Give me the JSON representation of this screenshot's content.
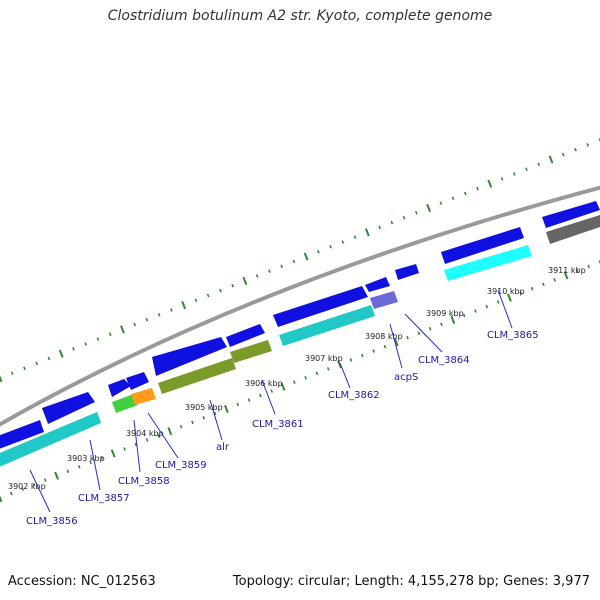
{
  "title": "Clostridium botulinum A2 str. Kyoto, complete genome",
  "footer": {
    "accession": "Accession: NC_012563",
    "summary": "Topology: circular; Length: 4,155,278 bp; Genes: 3,977"
  },
  "colors": {
    "backbone": "#9a9a9a",
    "tick": "#2e8b2e",
    "gene_label": "#1a1aaa",
    "cds_forward": "#1010e0",
    "rna_track": "#20c8c8",
    "alr": "#7a9a2a",
    "CLM_3858": "#40d040",
    "CLM_3859": "#ff9a1a",
    "acpS": "#6a6ad8",
    "CLM_3866": "#666666"
  },
  "kbp_ticks": [
    "3902 kbp",
    "3903 kbp",
    "3904 kbp",
    "3905 kbp",
    "3906 kbp",
    "3907 kbp",
    "3908 kbp",
    "3909 kbp",
    "3910 kbp",
    "3911 kbp"
  ],
  "gene_labels": [
    "CLM_3856",
    "CLM_3857",
    "CLM_3858",
    "CLM_3859",
    "alr",
    "CLM_3861",
    "CLM_3862",
    "acpS",
    "CLM_3864",
    "CLM_3865"
  ]
}
